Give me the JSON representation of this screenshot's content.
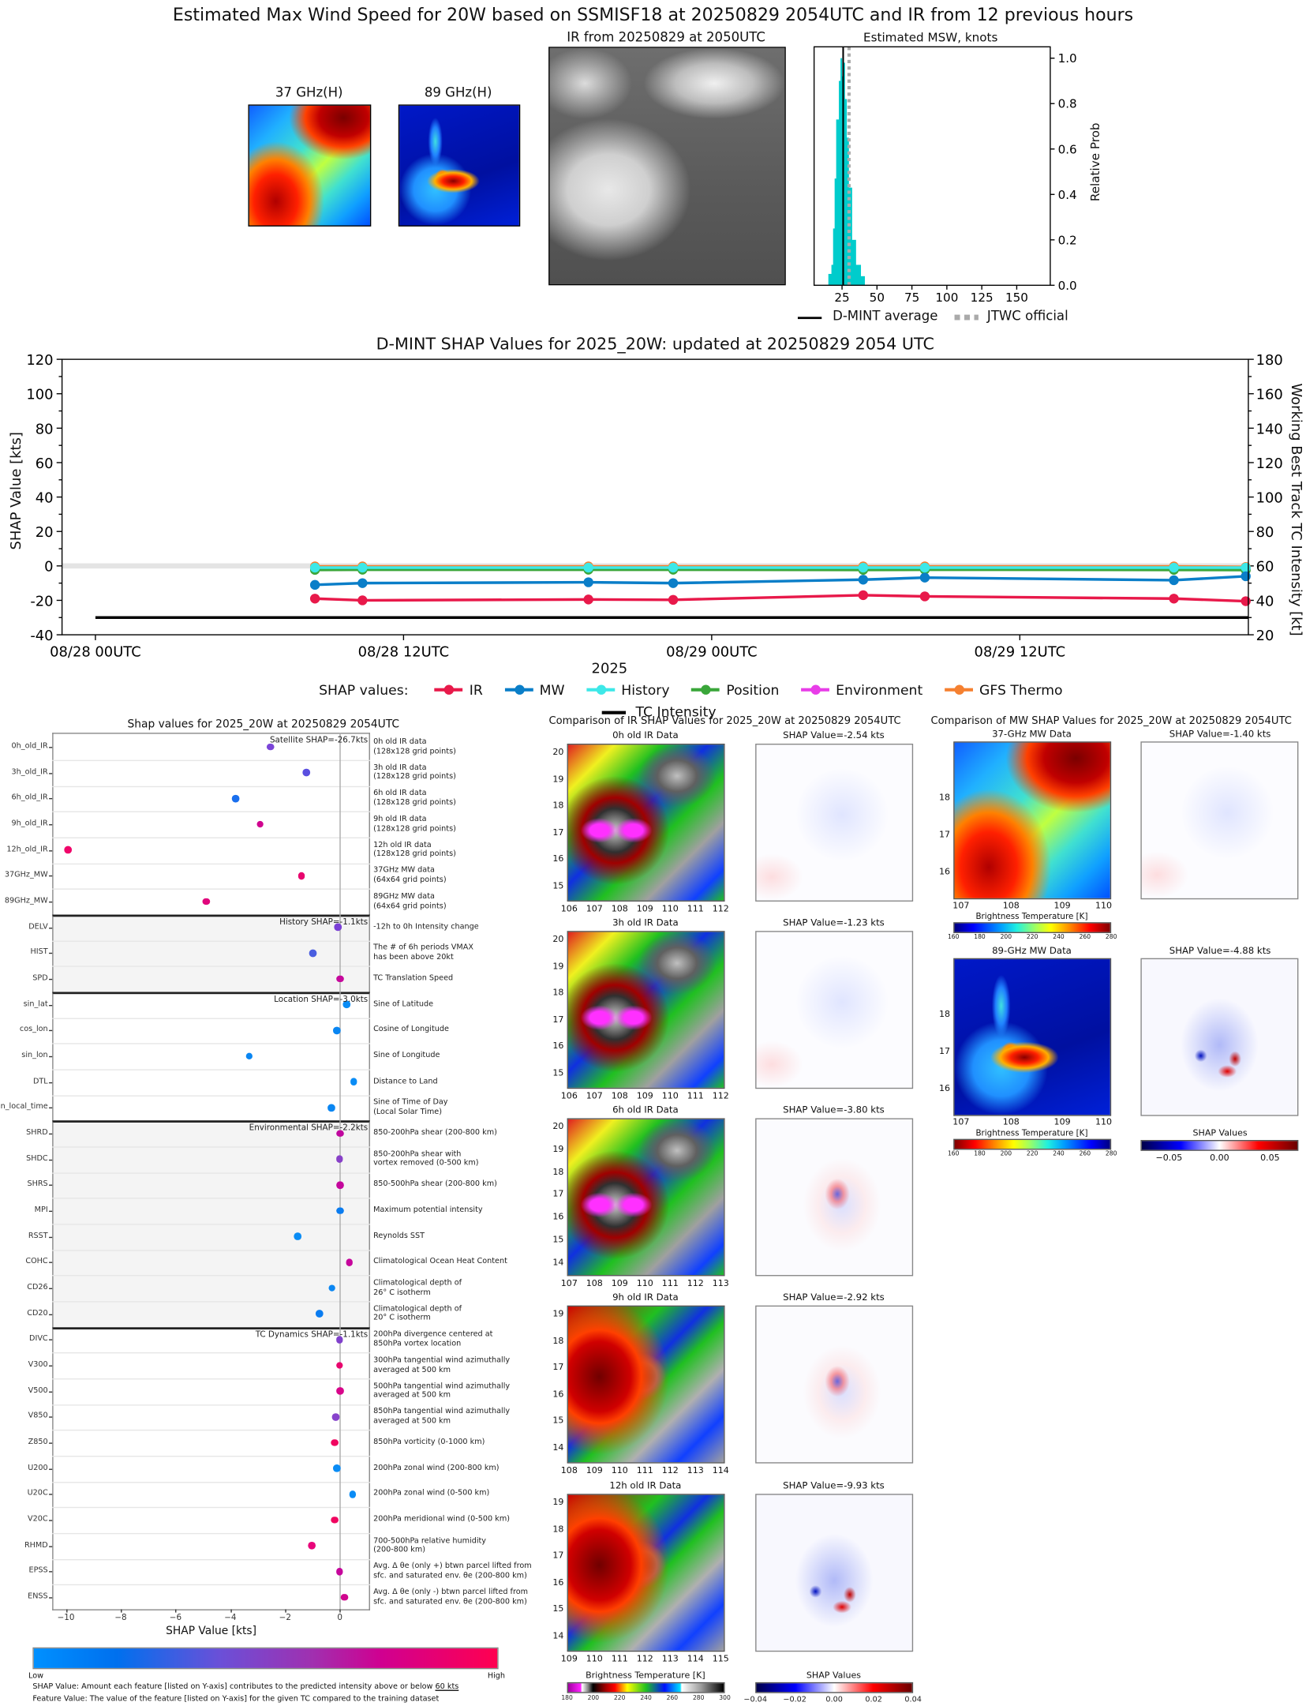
{
  "header": {
    "title": "Estimated Max Wind Speed for 20W based on SSMISF18 at 20250829 2054UTC and IR from 12 previous hours"
  },
  "top": {
    "mw37_title": "37 GHz(H)",
    "mw89_title": "89 GHz(H)",
    "ir_title": "IR from 20250829 at 2050UTC"
  },
  "chart_data": [
    {
      "type": "bar",
      "title": "Estimated MSW, knots",
      "xlabel": "",
      "ylabel": "Relative Prob",
      "xlim": [
        5,
        174
      ],
      "ylim": [
        0,
        1.05
      ],
      "xticks": [
        "25",
        "50",
        "75",
        "100",
        "125",
        "150"
      ],
      "xtick_values": [
        25,
        50,
        75,
        100,
        125,
        150
      ],
      "yticks": [
        "0.0",
        "0.2",
        "0.4",
        "0.6",
        "0.8",
        "1.0"
      ],
      "ytick_values": [
        0,
        0.2,
        0.4,
        0.6,
        0.8,
        1.0
      ],
      "bin_edges": [
        15.2,
        17.4,
        18.6,
        19.7,
        20.8,
        22.7,
        23.9,
        24.8,
        25.9,
        26.9,
        28.2,
        29.7,
        32.0,
        34.8,
        38.3,
        41.1
      ],
      "values": [
        0.05,
        0.09,
        0.25,
        0.47,
        0.73,
        0.9,
        1.0,
        0.92,
        0.98,
        0.82,
        0.65,
        0.43,
        0.2,
        0.09,
        0.04
      ],
      "bar_color": "#00cccc",
      "dmint_average": 25.8,
      "jtwc_official": 30,
      "legend": [
        {
          "label": "D-MINT average",
          "color": "#000000"
        },
        {
          "label": "JTWC official",
          "color": "#aaaaaa"
        }
      ],
      "legend_placement": "bottom"
    },
    {
      "type": "line",
      "title": "D-MINT SHAP Values for 2025_20W: updated at 20250829 2054 UTC",
      "xlabel": "2025",
      "ylabel": "SHAP Value [kts]",
      "ylabel_right": "Working Best Track TC Intensity [kt]",
      "x_units": "hours since 08/28 00UTC",
      "xlim": [
        -1.3,
        44.9
      ],
      "ylim": [
        -40,
        120
      ],
      "ylim_right": [
        20,
        180
      ],
      "xticks": [
        "08/28 00UTC",
        "08/28 12UTC",
        "08/29 00UTC",
        "08/29 12UTC"
      ],
      "xtick_values": [
        0,
        12,
        24,
        36
      ],
      "yticks": [
        "-40",
        "-20",
        "0",
        "20",
        "40",
        "60",
        "80",
        "100",
        "120"
      ],
      "ytick_values": [
        -40,
        -20,
        0,
        20,
        40,
        60,
        80,
        100,
        120
      ],
      "yticks_right": [
        "20",
        "40",
        "60",
        "80",
        "100",
        "120",
        "140",
        "160",
        "180"
      ],
      "x": [
        8.55,
        10.4,
        19.2,
        22.5,
        29.9,
        32.3,
        42.0,
        44.8
      ],
      "legend_title": "SHAP values:",
      "series": [
        {
          "name": "IR",
          "color": "#e8194a",
          "values": [
            -19,
            -20,
            -19.5,
            -19.7,
            -17,
            -17.7,
            -19,
            -20.5
          ]
        },
        {
          "name": "MW",
          "color": "#0a7ec8",
          "values": [
            -11,
            -10,
            -9.5,
            -10,
            -8,
            -6.8,
            -8.3,
            -6
          ]
        },
        {
          "name": "History",
          "color": "#3de8e8",
          "values": [
            -1,
            -1,
            -1,
            -1,
            -1,
            -1,
            -1,
            -1
          ]
        },
        {
          "name": "Position",
          "color": "#3aa63a",
          "values": [
            -2.3,
            -2.2,
            -2.2,
            -2.2,
            -2.3,
            -2.2,
            -2.3,
            -2.4
          ]
        },
        {
          "name": "Environment",
          "color": "#e83de8",
          "values": [
            -1.6,
            -1.5,
            -1.5,
            -1.5,
            -1.6,
            -1.5,
            -1.6,
            -2.2
          ]
        },
        {
          "name": "GFS Thermo",
          "color": "#f58030",
          "values": [
            -0.3,
            -0.3,
            -0.3,
            -0.3,
            -0.3,
            -0.3,
            -0.3,
            -0.6
          ]
        }
      ],
      "tc_intensity": {
        "name": "TC Intensity",
        "color": "#000000",
        "x": [
          0,
          44.9
        ],
        "values_kt": [
          30,
          30
        ]
      },
      "legend_placement": "bottom"
    },
    {
      "type": "scatter",
      "title": "Shap values for 2025_20W at 20250829 2054UTC",
      "xlabel": "SHAP Value [kts]",
      "xlim": [
        -10.5,
        1.1
      ],
      "xticks": [
        "−10",
        "−8",
        "−6",
        "−4",
        "−2",
        "0"
      ],
      "xtick_values": [
        -10,
        -8,
        -6,
        -4,
        -2,
        0
      ],
      "groups": [
        {
          "label": "Satellite SHAP=-26.7kts",
          "shaded": false,
          "features": [
            {
              "name": "0h_old_IR",
              "desc": "0h old IR data\n(128x128 grid points)",
              "value": -2.54,
              "color": "#7b45d8"
            },
            {
              "name": "3h_old_IR",
              "desc": "3h old IR data\n(128x128 grid points)",
              "value": -1.23,
              "color": "#5a4fe0"
            },
            {
              "name": "6h_old_IR",
              "desc": "6h old IR data\n(128x128 grid points)",
              "value": -3.8,
              "color": "#1a6fee"
            },
            {
              "name": "9h_old_IR",
              "desc": "9h old IR data\n(128x128 grid points)",
              "value": -2.92,
              "color": "#d0048f"
            },
            {
              "name": "12h_old_IR",
              "desc": "12h old IR data\n(128x128 grid points)",
              "value": -9.93,
              "color": "#f0056a"
            },
            {
              "name": "37GHz_MW",
              "desc": "37GHz MW data\n(64x64 grid points)",
              "value": -1.4,
              "color": "#e8056e"
            },
            {
              "name": "89GHz_MW",
              "desc": "89GHz MW data\n(64x64 grid points)",
              "value": -4.88,
              "color": "#e0067c"
            }
          ]
        },
        {
          "label": "History SHAP=-1.1kts",
          "shaded": true,
          "features": [
            {
              "name": "DELV",
              "desc": "-12h to 0h Intensity change",
              "value": -0.07,
              "color": "#7a3fd6"
            },
            {
              "name": "HIST",
              "desc": "The # of 6h periods VMAX\nhas been above 20kt",
              "value": -0.98,
              "color": "#4a5ee0"
            },
            {
              "name": "SPD",
              "desc": "TC Translation Speed",
              "value": 0.0,
              "color": "#c6089c"
            }
          ]
        },
        {
          "label": "Location SHAP=-3.0kts",
          "shaded": false,
          "features": [
            {
              "name": "sin_lat",
              "desc": "Sine of Latitude",
              "value": 0.25,
              "color": "#0a8cf5"
            },
            {
              "name": "cos_lon",
              "desc": "Cosine of Longitude",
              "value": -0.11,
              "color": "#0a86f2"
            },
            {
              "name": "sin_lon",
              "desc": "Sine of Longitude",
              "value": -3.31,
              "color": "#0a86f2"
            },
            {
              "name": "DTL",
              "desc": "Distance to Land",
              "value": 0.51,
              "color": "#0a8cf5"
            },
            {
              "name": "sin_local_time",
              "desc": "Sine of Time of Day\n(Local Solar Time)",
              "value": -0.32,
              "color": "#0a86f2"
            }
          ]
        },
        {
          "label": "Environmental SHAP=-2.2kts",
          "shaded": true,
          "features": [
            {
              "name": "SHRD",
              "desc": "850-200hPa shear (200-800 km)",
              "value": 0.0,
              "color": "#c0079e"
            },
            {
              "name": "SHDC",
              "desc": "850-200hPa shear with\nvortex removed (0-500 km)",
              "value": -0.01,
              "color": "#8840c8"
            },
            {
              "name": "SHRS",
              "desc": "850-500hPa shear (200-800 km)",
              "value": 0.01,
              "color": "#c4079c"
            },
            {
              "name": "MPI",
              "desc": "Maximum potential intensity",
              "value": 0.0,
              "color": "#0a7cf0"
            },
            {
              "name": "RSST",
              "desc": "Reynolds SST",
              "value": -1.54,
              "color": "#0a8cf5"
            },
            {
              "name": "COHC",
              "desc": "Climatological Ocean Heat Content",
              "value": 0.35,
              "color": "#c6069c"
            },
            {
              "name": "CD26",
              "desc": "Climatological depth of\n26° C isotherm",
              "value": -0.29,
              "color": "#0a86f2"
            },
            {
              "name": "CD20",
              "desc": "Climatological depth of\n20° C isotherm",
              "value": -0.75,
              "color": "#0a7cf0"
            }
          ]
        },
        {
          "label": "TC Dynamics SHAP=-1.1kts",
          "shaded": false,
          "features": [
            {
              "name": "DIVC",
              "desc": "200hPa divergence centered at\n850hPa vortex location",
              "value": -0.02,
              "color": "#8040cc"
            },
            {
              "name": "V300",
              "desc": "300hPa tangential wind azimuthally\naveraged at 500 km",
              "value": -0.02,
              "color": "#e8056e"
            },
            {
              "name": "V500",
              "desc": "500hPa tangential wind azimuthally\naveraged at 500 km",
              "value": 0.01,
              "color": "#d8058a"
            },
            {
              "name": "V850",
              "desc": "850hPa tangential wind azimuthally\naveraged at 500 km",
              "value": -0.14,
              "color": "#8844cc"
            },
            {
              "name": "Z850",
              "desc": "850hPa vorticity (0-1000 km)",
              "value": -0.2,
              "color": "#f00560"
            },
            {
              "name": "U200",
              "desc": "200hPa zonal wind (200-800 km)",
              "value": -0.11,
              "color": "#0a8cf5"
            },
            {
              "name": "U20C",
              "desc": "200hPa zonal wind (0-500 km)",
              "value": 0.46,
              "color": "#0a8cf5"
            },
            {
              "name": "V20C",
              "desc": "200hPa meridional wind (0-500 km)",
              "value": -0.2,
              "color": "#f00560"
            },
            {
              "name": "RHMD",
              "desc": "700-500hPa relative humidity\n(200-800 km)",
              "value": -1.03,
              "color": "#e8057a"
            },
            {
              "name": "EPSS",
              "desc": "Avg. Δ θe (only +) btwn parcel lifted from\nsfc. and saturated env. θe (200-800 km)",
              "value": -0.02,
              "color": "#c6069c"
            },
            {
              "name": "ENSS",
              "desc": "Avg. Δ θe (only -) btwn parcel lifted from\nsfc. and saturated env. θe (200-800 km)",
              "value": 0.17,
              "color": "#d0058e"
            }
          ]
        }
      ],
      "colorbar": {
        "low": "Low",
        "high": "High"
      }
    }
  ],
  "footnotes": {
    "line1_prefix": "SHAP Value: Amount each feature [listed on Y-axis] contributes to the predicted intensity above or below ",
    "line1_link": "60 kts",
    "line2": "Feature Value: The value of the feature [listed on Y-axis] for the given TC compared to the training dataset"
  },
  "ir_comparison": {
    "title": "Comparison of IR SHAP Values for 2025_20W at 20250829 2054UTC",
    "panels": [
      {
        "title": "0h old IR Data",
        "shap_title": "SHAP Value=-2.54 kts",
        "yticks": [
          "20",
          "19",
          "18",
          "17",
          "16",
          "15"
        ],
        "xticks": [
          "106",
          "107",
          "108",
          "109",
          "110",
          "111",
          "112"
        ]
      },
      {
        "title": "3h old IR Data",
        "shap_title": "SHAP Value=-1.23 kts",
        "yticks": [
          "20",
          "19",
          "18",
          "17",
          "16",
          "15"
        ],
        "xticks": [
          "106",
          "107",
          "108",
          "109",
          "110",
          "111",
          "112"
        ]
      },
      {
        "title": "6h old IR Data",
        "shap_title": "SHAP Value=-3.80 kts",
        "yticks": [
          "20",
          "19",
          "18",
          "17",
          "16",
          "15",
          "14"
        ],
        "xticks": [
          "107",
          "108",
          "109",
          "110",
          "111",
          "112",
          "113"
        ]
      },
      {
        "title": "9h old IR Data",
        "shap_title": "SHAP Value=-2.92 kts",
        "yticks": [
          "19",
          "18",
          "17",
          "16",
          "15",
          "14"
        ],
        "xticks": [
          "108",
          "109",
          "110",
          "111",
          "112",
          "113",
          "114"
        ]
      },
      {
        "title": "12h old IR Data",
        "shap_title": "SHAP Value=-9.93 kts",
        "yticks": [
          "19",
          "18",
          "17",
          "16",
          "15",
          "14"
        ],
        "xticks": [
          "109",
          "110",
          "111",
          "112",
          "113",
          "114",
          "115"
        ]
      }
    ],
    "ir_colorbar": {
      "label": "Brightness Temperature [K]",
      "ticks": [
        "180",
        "200",
        "220",
        "240",
        "260",
        "280",
        "300"
      ]
    },
    "shap_colorbar": {
      "label": "SHAP Values",
      "ticks": [
        "−0.04",
        "−0.02",
        "0.00",
        "0.02",
        "0.04"
      ]
    }
  },
  "mw_comparison": {
    "title": "Comparison of MW SHAP Values for 2025_20W at 20250829 2054UTC",
    "panels": [
      {
        "title": "37-GHz MW Data",
        "shap_title": "SHAP Value=-1.40 kts",
        "yticks": [
          "18",
          "17",
          "16"
        ],
        "xticks": [
          "107",
          "108",
          "109",
          "110"
        ],
        "colorbar": {
          "label": "Brightness Temperature [K]",
          "ticks": [
            "160",
            "180",
            "200",
            "220",
            "240",
            "260",
            "280"
          ]
        }
      },
      {
        "title": "89-GHz MW Data",
        "shap_title": "SHAP Value=-4.88 kts",
        "yticks": [
          "18",
          "17",
          "16"
        ],
        "xticks": [
          "107",
          "108",
          "109",
          "110"
        ],
        "colorbar": {
          "label": "Brightness Temperature [K]",
          "ticks": [
            "160",
            "180",
            "200",
            "220",
            "240",
            "260",
            "280"
          ]
        }
      }
    ],
    "shap_colorbar": {
      "label": "SHAP Values",
      "ticks": [
        "−0.05",
        "0.00",
        "0.05"
      ]
    }
  }
}
